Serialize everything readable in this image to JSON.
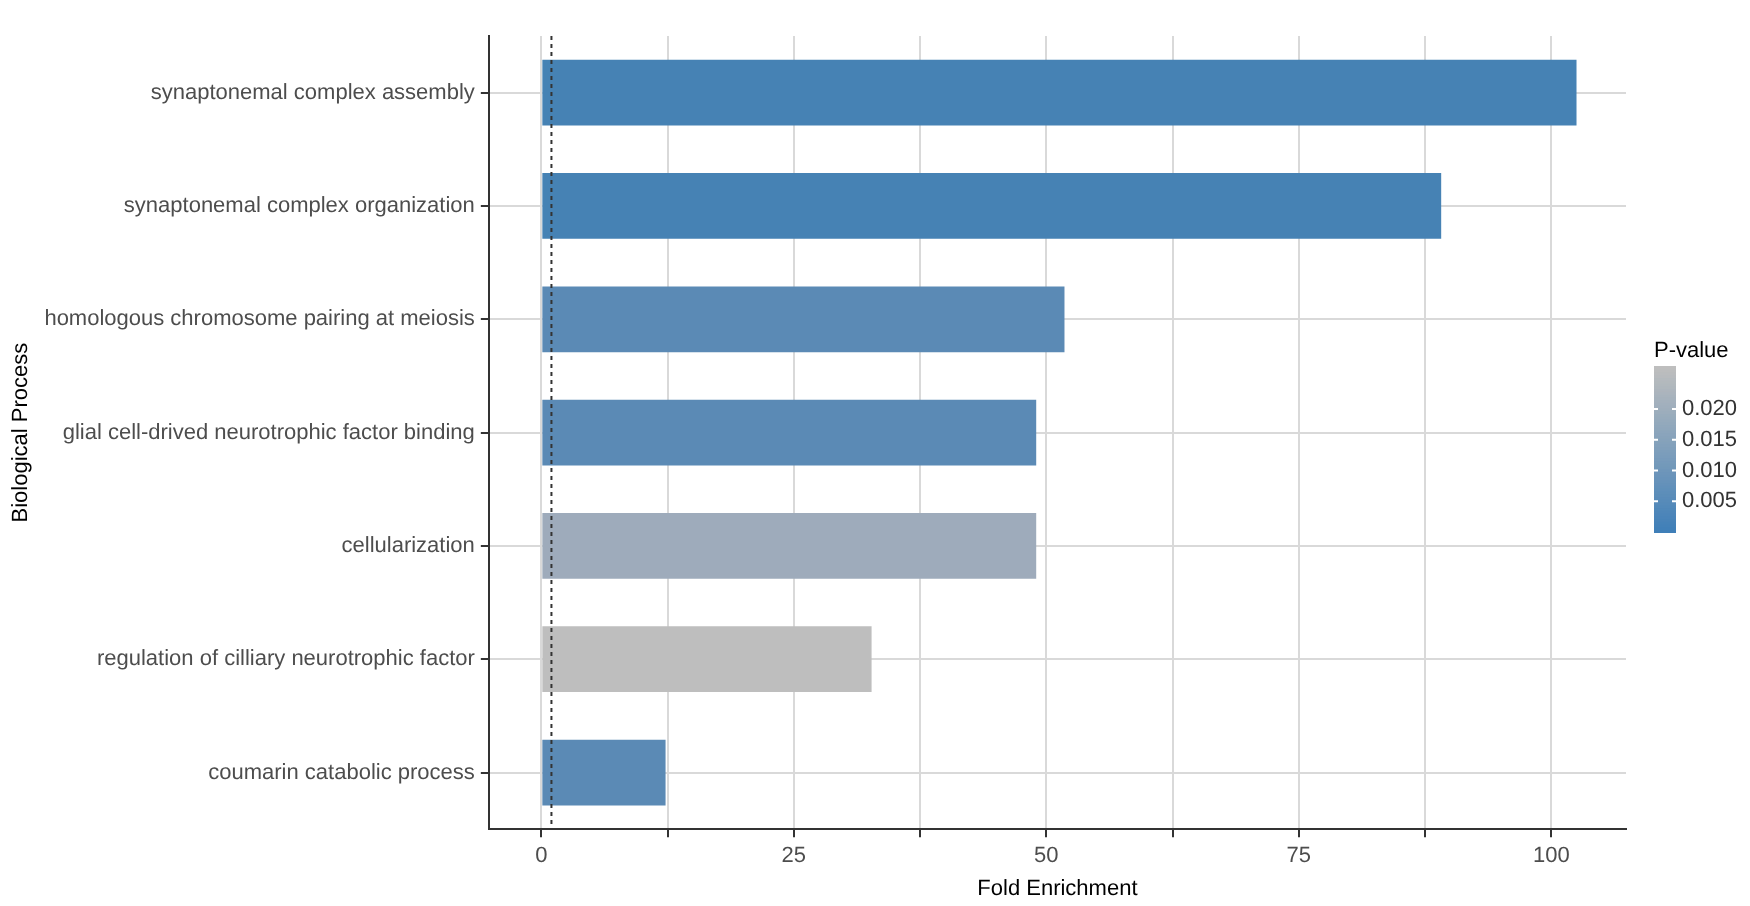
{
  "chart_data": {
    "type": "bar",
    "orientation": "horizontal",
    "xlabel": "Fold Enrichment",
    "ylabel": "Biological Process",
    "clabel": "P-value",
    "categories": [
      "synaptonemal complex assembly",
      "synaptonemal complex organization",
      "homologous chromosome pairing at meiosis",
      "glial cell-drived neurotrophic factor binding",
      "cellularization",
      "regulation of cilliary neurotrophic factor",
      "coumarin catabolic process"
    ],
    "values": [
      102.5,
      89.1,
      51.8,
      49.0,
      49.0,
      32.7,
      12.3
    ],
    "colors": [
      "#4682b4",
      "#4682b4",
      "#5b8ab5",
      "#5b8ab5",
      "#9eabbb",
      "#bebebe",
      "#5b8ab5"
    ],
    "xlim": [
      -5.2,
      107.4
    ],
    "xticks": [
      0,
      {
        "value": 12.5,
        "label": null
      },
      25,
      {
        "value": 37.5,
        "label": null
      },
      50,
      {
        "value": 62.5,
        "label": null
      },
      75,
      {
        "value": 87.5,
        "label": null
      },
      100
    ],
    "clim": [
      0,
      0.027
    ],
    "cticks": [
      {
        "value": 0.005,
        "label": "0.005"
      },
      {
        "value": 0.01,
        "label": "0.010"
      },
      {
        "value": 0.015,
        "label": "0.015"
      },
      {
        "value": 0.02,
        "label": "0.020"
      }
    ],
    "ref_lines": [
      {
        "axis": "x",
        "value": 1,
        "line_style": "dotted",
        "color": "#333333"
      }
    ],
    "grid": true
  }
}
